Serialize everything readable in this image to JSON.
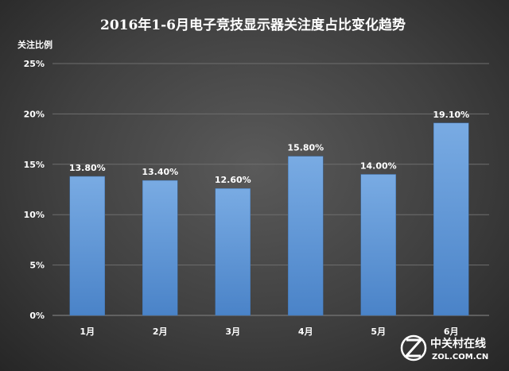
{
  "chart_data": {
    "type": "bar",
    "title": "2016年1-6月电子竞技显示器关注度占比变化趋势",
    "ylabel": "关注比例",
    "xlabel": "",
    "categories": [
      "1月",
      "2月",
      "3月",
      "4月",
      "5月",
      "6月"
    ],
    "values": [
      13.8,
      13.4,
      12.6,
      15.8,
      14.0,
      19.1
    ],
    "data_labels": [
      "13.80%",
      "13.40%",
      "12.60%",
      "15.80%",
      "14.00%",
      "19.10%"
    ],
    "ylim": [
      0,
      25
    ],
    "yticks": [
      0,
      5,
      10,
      15,
      20,
      25
    ],
    "ytick_labels": [
      "0%",
      "5%",
      "10%",
      "15%",
      "20%",
      "25%"
    ],
    "grid": true,
    "legend": "none"
  },
  "colors": {
    "bar_top": "#79abe3",
    "bar_bottom": "#4a83c8",
    "grid": "#6e6e6e",
    "text": "#ffffff"
  },
  "watermark": {
    "name": "中关村在线",
    "domain": "ZOL.COM.CN",
    "icon": "zol-logo-icon"
  }
}
